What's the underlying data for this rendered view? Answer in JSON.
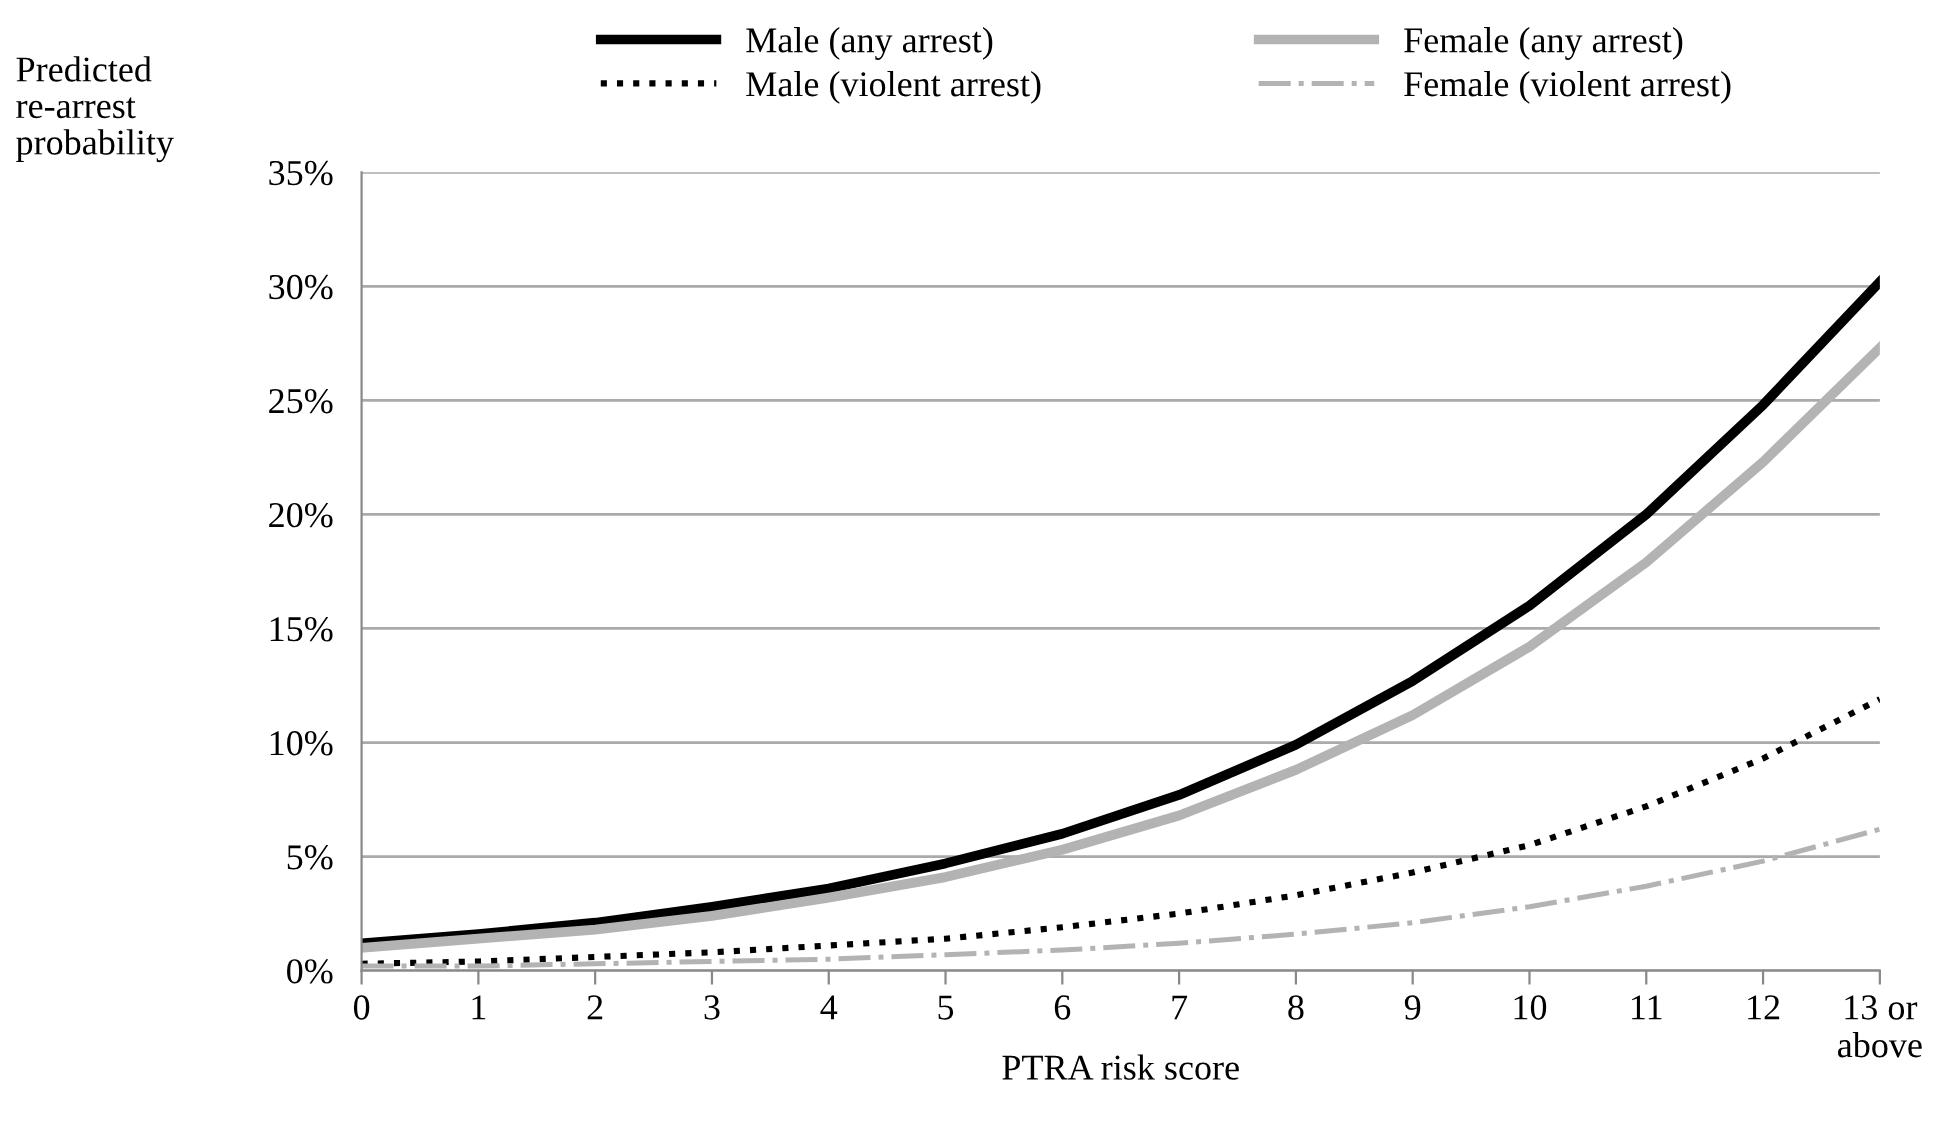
{
  "chart_data": {
    "type": "line",
    "xlabel": "PTRA risk score",
    "ylabel": "Predicted\nre-arrest\nprobability",
    "categories": [
      "0",
      "1",
      "2",
      "3",
      "4",
      "5",
      "6",
      "7",
      "8",
      "9",
      "10",
      "11",
      "12",
      "13 or\nabove"
    ],
    "series": [
      {
        "name": "Male (any arrest)",
        "color": "#000000",
        "line_style": "solid",
        "values": [
          1.2,
          1.6,
          2.1,
          2.8,
          3.6,
          4.7,
          6.0,
          7.7,
          9.9,
          12.7,
          16.0,
          20.0,
          24.8,
          30.2
        ]
      },
      {
        "name": "Female (any arrest)",
        "color": "#b3b3b3",
        "line_style": "solid",
        "values": [
          1.0,
          1.4,
          1.8,
          2.4,
          3.2,
          4.1,
          5.3,
          6.8,
          8.8,
          11.2,
          14.2,
          17.9,
          22.3,
          27.3
        ]
      },
      {
        "name": "Male (violent arrest)",
        "color": "#000000",
        "line_style": "dotted",
        "values": [
          0.3,
          0.4,
          0.6,
          0.8,
          1.1,
          1.4,
          1.9,
          2.5,
          3.3,
          4.3,
          5.5,
          7.2,
          9.3,
          11.9
        ]
      },
      {
        "name": "Female (violent arrest)",
        "color": "#b3b3b3",
        "line_style": "dashdot",
        "values": [
          0.2,
          0.2,
          0.3,
          0.4,
          0.5,
          0.7,
          0.9,
          1.2,
          1.6,
          2.1,
          2.8,
          3.7,
          4.8,
          6.2
        ]
      }
    ],
    "ylim": [
      0,
      35
    ],
    "yticks": [
      {
        "value": 0,
        "label": "0%"
      },
      {
        "value": 5,
        "label": "5%"
      },
      {
        "value": 10,
        "label": "10%"
      },
      {
        "value": 15,
        "label": "15%"
      },
      {
        "value": 20,
        "label": "20%"
      },
      {
        "value": 25,
        "label": "25%"
      },
      {
        "value": 30,
        "label": "30%"
      },
      {
        "value": 35,
        "label": "35%"
      }
    ],
    "grid": "y",
    "legend": "top",
    "marker": "none"
  }
}
